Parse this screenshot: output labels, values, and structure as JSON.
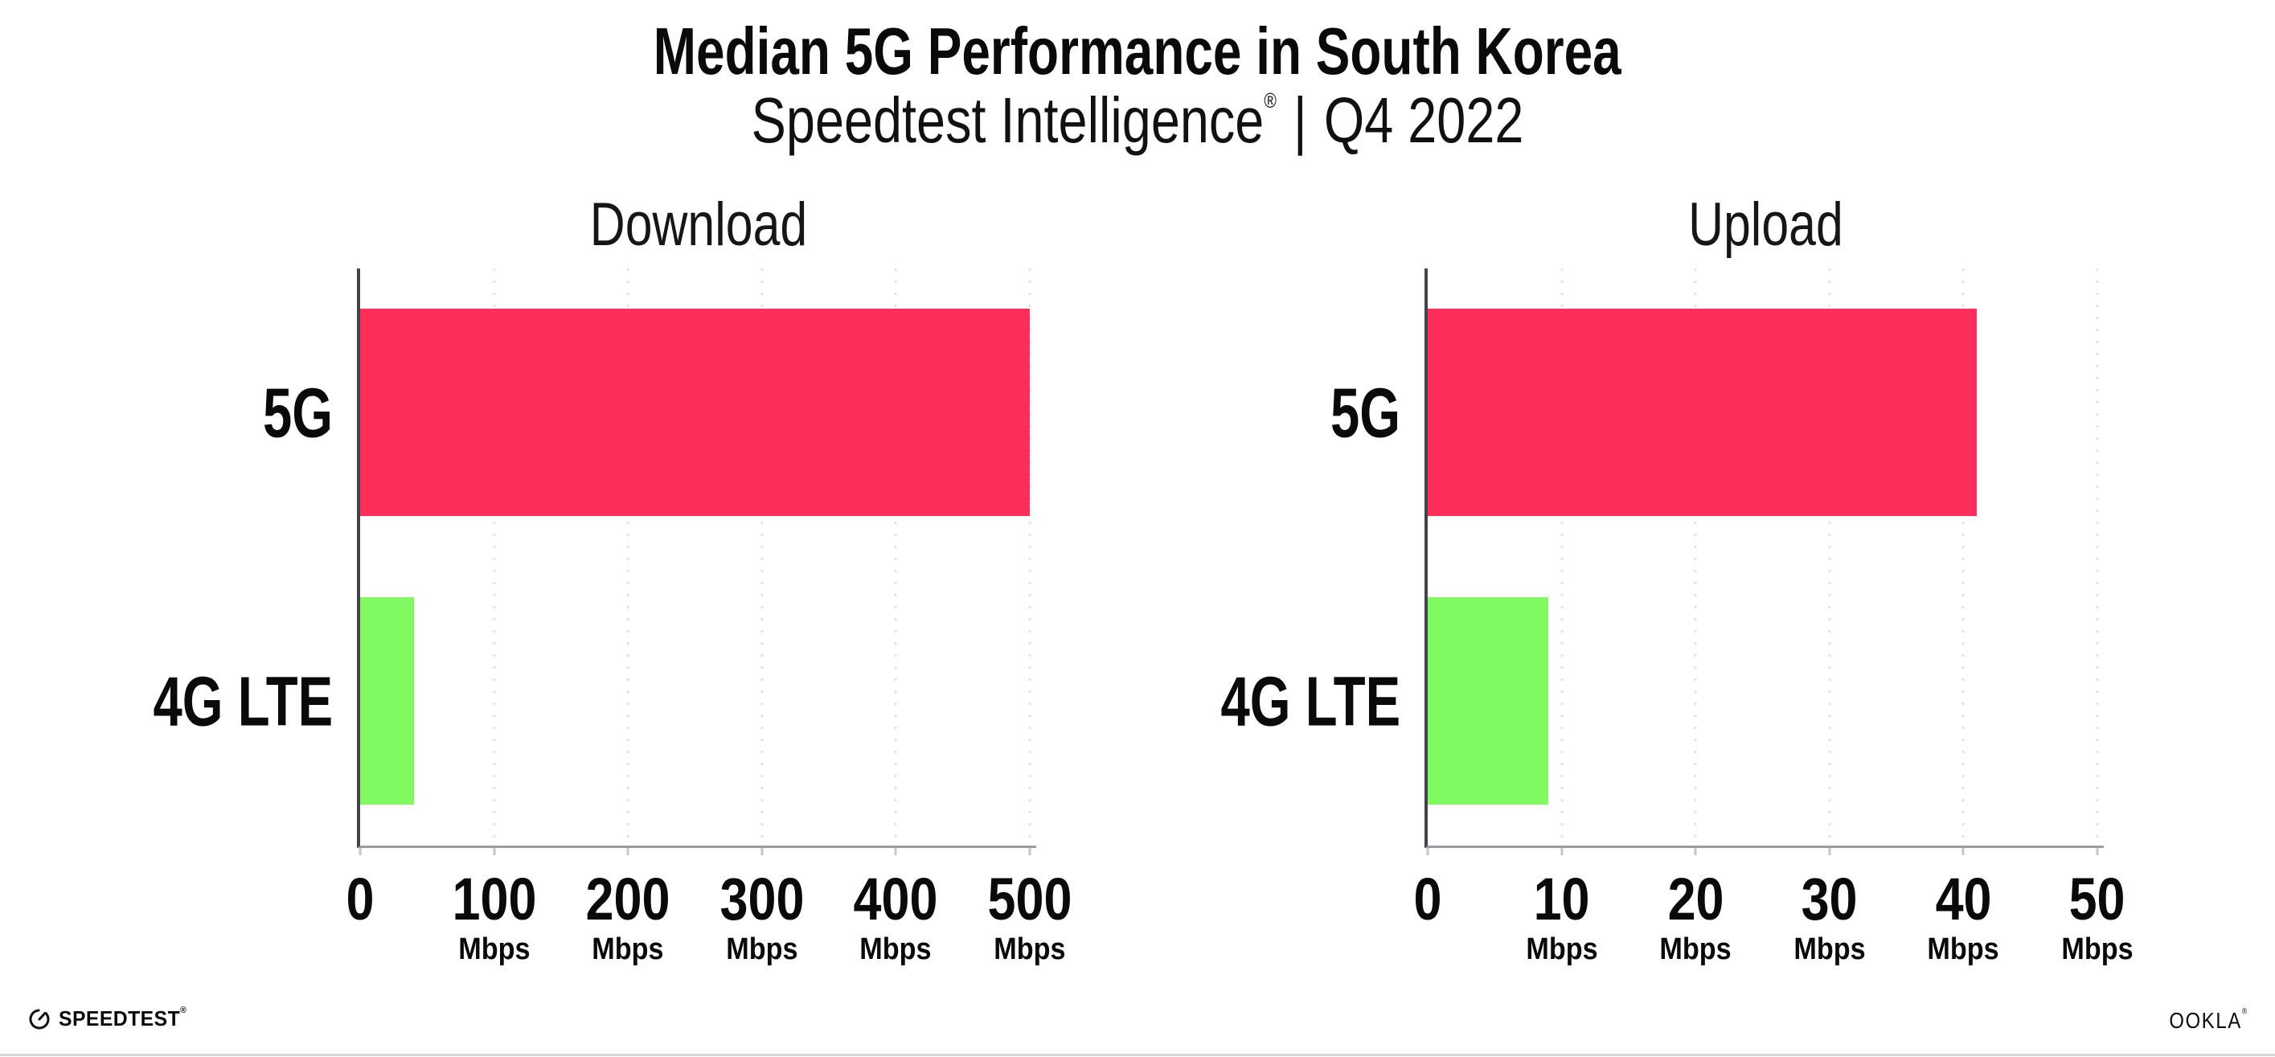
{
  "title": "Median 5G Performance in South Korea",
  "subtitle": {
    "brand": "Speedtest Intelligence",
    "registered": "®",
    "separator": "|",
    "period": "Q4 2022"
  },
  "colors": {
    "background": "#ffffff",
    "bar_5g": "#fd2e57",
    "bar_4g_lte": "#81fa62",
    "gridline": "#e2e2ea",
    "axis_y": "#46424c",
    "axis_x": "#9c9ca2",
    "text": "#0a0a0b",
    "bottom_hairline": "#d8d8d8"
  },
  "chart_data": [
    {
      "type": "bar",
      "orientation": "horizontal",
      "title": "Download",
      "categories": [
        "5G",
        "4G LTE"
      ],
      "values": [
        500,
        40
      ],
      "unit": "Mbps",
      "xticks": [
        0,
        100,
        200,
        300,
        400,
        500
      ],
      "xlim": [
        0,
        505
      ],
      "bar_colors": [
        "#fd2e57",
        "#81fa62"
      ],
      "grid": "vertical-dotted",
      "legend": "none"
    },
    {
      "type": "bar",
      "orientation": "horizontal",
      "title": "Upload",
      "categories": [
        "5G",
        "4G LTE"
      ],
      "values": [
        41,
        9
      ],
      "unit": "Mbps",
      "xticks": [
        0,
        10,
        20,
        30,
        40,
        50
      ],
      "xlim": [
        0,
        50.5
      ],
      "bar_colors": [
        "#fd2e57",
        "#81fa62"
      ],
      "grid": "vertical-dotted",
      "legend": "none"
    }
  ],
  "footer": {
    "speedtest_label": "SPEEDTEST",
    "speedtest_reg": "®",
    "ookla_label": "OOKLA",
    "ookla_reg": "®"
  }
}
